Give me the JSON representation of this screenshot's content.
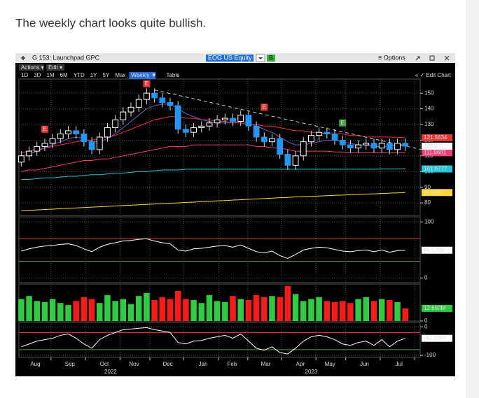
{
  "post_text": "The weekly chart looks quite bullish.",
  "toolbar": {
    "window_title": "G 153: Launchpad GPC",
    "ticker": "EOG US Equity",
    "ticker_badge": "B",
    "options": "≡ Options",
    "menus": [
      "Actions ▾",
      "Edit ▾"
    ],
    "ranges": [
      "1D",
      "3D",
      "1M",
      "6M",
      "YTD",
      "1Y",
      "5Y",
      "Max"
    ],
    "period": "Weekly ▼",
    "table": "Table",
    "edit_chart": "« ✓ Edit Chart"
  },
  "chart_data": [
    {
      "type": "candlestick",
      "xlim": [
        -0.3,
        50.9
      ],
      "xticks": [
        {
          "value": 3.8,
          "label": "Aug"
        },
        {
          "value": 8.2,
          "label": "Sep"
        },
        {
          "value": 12.6,
          "label": "Oct"
        },
        {
          "value": 16.4,
          "label": "Nov"
        },
        {
          "value": 20.7,
          "label": "Dec"
        },
        {
          "value": 25.2,
          "label": "Jan"
        },
        {
          "value": 28.9,
          "label": "Feb"
        },
        {
          "value": 33.2,
          "label": "Mar"
        },
        {
          "value": 37.6,
          "label": "Apr"
        },
        {
          "value": 41.4,
          "label": "May"
        },
        {
          "value": 45.8,
          "label": "Jun"
        },
        {
          "value": 50.2,
          "label": "Jul"
        }
      ],
      "year_labels": [
        {
          "value": 11.4,
          "label": "2022"
        },
        {
          "value": 37,
          "label": "2023"
        }
      ],
      "ylim": [
        72,
        159
      ],
      "yticks": [
        80,
        90,
        100,
        110,
        120,
        130,
        140,
        150
      ],
      "grid": true,
      "up_color": "#ffffff",
      "down_color": "#2196f3",
      "open": [
        106,
        110,
        113,
        116,
        118,
        121,
        124,
        126,
        124,
        119,
        114,
        122,
        128,
        133,
        138,
        141,
        146,
        150,
        147,
        144,
        142,
        127,
        125,
        128,
        129,
        131,
        133,
        134,
        132,
        136,
        129,
        122,
        119,
        121,
        111,
        104,
        110,
        119,
        123,
        125,
        124,
        120,
        117,
        115,
        117,
        118,
        115,
        118,
        114,
        118
      ],
      "high": [
        113,
        116,
        119,
        121,
        124,
        127,
        129,
        129,
        127,
        122,
        125,
        131,
        136,
        141,
        144,
        149,
        153,
        153,
        150,
        147,
        145,
        130,
        131,
        132,
        134,
        136,
        137,
        137,
        139,
        139,
        132,
        125,
        124,
        124,
        114,
        113,
        122,
        126,
        128,
        128,
        127,
        123,
        120,
        120,
        121,
        121,
        121,
        121,
        121,
        121
      ],
      "low": [
        103,
        107,
        110,
        113,
        115,
        118,
        121,
        121,
        116,
        111,
        111,
        119,
        125,
        130,
        135,
        138,
        143,
        144,
        141,
        139,
        124,
        122,
        122,
        125,
        126,
        128,
        130,
        129,
        129,
        126,
        119,
        116,
        116,
        108,
        101,
        101,
        107,
        116,
        120,
        121,
        117,
        114,
        112,
        112,
        114,
        112,
        112,
        111,
        111,
        113
      ],
      "close": [
        110,
        113,
        116,
        118,
        121,
        124,
        126,
        124,
        119,
        114,
        122,
        128,
        133,
        138,
        141,
        146,
        150,
        147,
        144,
        142,
        127,
        125,
        128,
        129,
        131,
        133,
        134,
        132,
        136,
        129,
        122,
        119,
        121,
        111,
        104,
        110,
        119,
        123,
        125,
        124,
        120,
        117,
        115,
        117,
        118,
        115,
        118,
        114,
        118,
        116.2
      ],
      "close_value_label": "116.20",
      "series": [
        {
          "color": "#e53935",
          "values": [
            112,
            113,
            114,
            115,
            116,
            117,
            118,
            119,
            120,
            120,
            121,
            122,
            123,
            125,
            127,
            129,
            131,
            133,
            134,
            135,
            135,
            134,
            134,
            133,
            133,
            132,
            132,
            131,
            131,
            130,
            130,
            129,
            129,
            128,
            127,
            126,
            126,
            125,
            125,
            124,
            124,
            124,
            123,
            123,
            122,
            122,
            122,
            122,
            121.8,
            121.5634
          ]
        },
        {
          "color": "#7e57c2",
          "values": [
            110,
            111,
            113,
            115,
            117,
            119,
            121,
            122,
            121,
            119,
            119,
            121,
            124,
            128,
            132,
            136,
            140,
            142,
            143,
            143,
            140,
            137,
            135,
            133,
            132,
            131,
            131,
            131,
            132,
            131,
            129,
            127,
            125,
            122,
            119,
            117,
            117,
            118,
            119,
            120,
            120,
            119,
            118,
            117,
            117,
            116,
            116,
            116,
            117,
            117
          ]
        },
        {
          "color": "#ec407a",
          "values": [
            100,
            101,
            101,
            102,
            103,
            104,
            105,
            106,
            107,
            107,
            108,
            108,
            109,
            110,
            111,
            112,
            113,
            114,
            115,
            116,
            116,
            116,
            117,
            117,
            117,
            117,
            117,
            117,
            117,
            117,
            116,
            116,
            115,
            115,
            114,
            113,
            113,
            113,
            113,
            113,
            112.5,
            112.5,
            112,
            112,
            112,
            112,
            112,
            112,
            112,
            111.9681
          ]
        },
        {
          "color": "#26c6da",
          "values": [
            95,
            95,
            95.5,
            96,
            96,
            96.5,
            97,
            97,
            97.5,
            98,
            98,
            98.5,
            99,
            99,
            99.5,
            100,
            100,
            100.5,
            101,
            101,
            101,
            101.5,
            101.5,
            101.5,
            101.5,
            101.5,
            101.5,
            101.5,
            101.5,
            101.5,
            101.5,
            101.5,
            101.5,
            101.5,
            101.5,
            101.5,
            101.5,
            101.5,
            101.5,
            101.5,
            101.5,
            101.5,
            101.5,
            101.5,
            101.5,
            101.5,
            101.6,
            101.6,
            101.6,
            101.6777
          ]
        },
        {
          "color": "#fdd835",
          "values": [
            75,
            75.3,
            75.5,
            75.8,
            76,
            76.3,
            76.5,
            76.8,
            77,
            77.3,
            77.5,
            77.8,
            78,
            78.3,
            78.5,
            78.8,
            79,
            79.3,
            79.5,
            79.8,
            80,
            80.3,
            80.5,
            80.8,
            81,
            81.3,
            81.5,
            81.8,
            82,
            82.3,
            82.5,
            82.8,
            83,
            83.3,
            83.5,
            83.8,
            84,
            84.2,
            84.4,
            84.6,
            84.8,
            85,
            85.2,
            85.4,
            85.6,
            85.8,
            86,
            86.2,
            86.4,
            86.6087
          ]
        }
      ],
      "trendline": {
        "x": [
          17,
          52
        ],
        "y": [
          152,
          113
        ]
      },
      "events": [
        {
          "label": "E",
          "x": 3,
          "y": 127,
          "color": "#e53935"
        },
        {
          "label": "E",
          "x": 16,
          "y": 156,
          "color": "#e53935"
        },
        {
          "label": "E",
          "x": 31,
          "y": 141,
          "color": "#e53935"
        },
        {
          "label": "E",
          "x": 41,
          "y": 131,
          "color": "#43a047"
        }
      ]
    },
    {
      "type": "line",
      "ylim": [
        -8,
        109
      ],
      "yticks": [
        0,
        100
      ],
      "grid": true,
      "color": "#ffffff",
      "levels": [
        {
          "value": 70,
          "color": "#e53935"
        },
        {
          "value": 30,
          "color": "#43a047"
        }
      ],
      "values": [
        48,
        52,
        55,
        57,
        58,
        60,
        61,
        58,
        52,
        47,
        55,
        60,
        63,
        66,
        67,
        69,
        70,
        66,
        63,
        61,
        50,
        48,
        52,
        53,
        55,
        57,
        58,
        55,
        59,
        53,
        47,
        45,
        48,
        40,
        35,
        42,
        50,
        53,
        55,
        54,
        51,
        48,
        47,
        49,
        50,
        47,
        50,
        46,
        49,
        49.5709
      ]
    },
    {
      "type": "bar",
      "ylim": [
        0,
        37
      ],
      "yticks": [
        0
      ],
      "grid": true,
      "up_color": "#2ecc40",
      "down_color": "#ff1a1a",
      "values": [
        22,
        25,
        20,
        19,
        22,
        18,
        16,
        20,
        24,
        22,
        18,
        26,
        20,
        22,
        17,
        25,
        28,
        21,
        24,
        22,
        30,
        22,
        21,
        18,
        26,
        20,
        19,
        25,
        22,
        21,
        26,
        24,
        25,
        24,
        35,
        27,
        20,
        22,
        24,
        20,
        19,
        20,
        18,
        22,
        24,
        20,
        22,
        21,
        19,
        12.65
      ],
      "last_value_label": "12.650M"
    },
    {
      "type": "line",
      "ylim": [
        -107,
        15
      ],
      "yticks": [
        0,
        -100
      ],
      "grid": true,
      "color": "#ffffff",
      "levels": [
        {
          "value": -20,
          "color": "#e53935"
        },
        {
          "value": -80,
          "color": "#43a047"
        }
      ],
      "values": [
        -70,
        -60,
        -50,
        -45,
        -40,
        -30,
        -25,
        -40,
        -60,
        -75,
        -45,
        -30,
        -20,
        -10,
        -8,
        -5,
        -3,
        -10,
        -15,
        -20,
        -55,
        -60,
        -50,
        -48,
        -40,
        -35,
        -30,
        -40,
        -25,
        -50,
        -75,
        -82,
        -70,
        -90,
        -95,
        -75,
        -50,
        -35,
        -30,
        -35,
        -45,
        -60,
        -65,
        -55,
        -50,
        -65,
        -45,
        -70,
        -50,
        -40.3382
      ]
    }
  ]
}
